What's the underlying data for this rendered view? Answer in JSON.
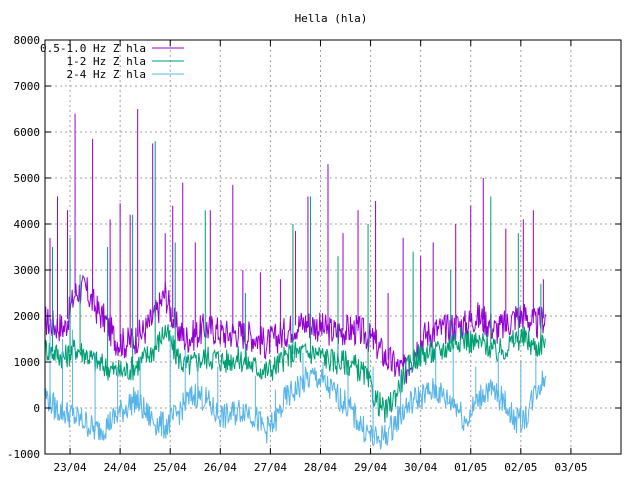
{
  "chart_data": {
    "type": "line",
    "title": "Hella (hla)",
    "xlabel": "",
    "ylabel": "",
    "ylim": [
      -1000,
      8000
    ],
    "yticks": [
      -1000,
      0,
      1000,
      2000,
      3000,
      4000,
      5000,
      6000,
      7000,
      8000
    ],
    "xlim": [
      0,
      11.5
    ],
    "xticks": [
      {
        "label": "23/04",
        "pos": 0.5
      },
      {
        "label": "24/04",
        "pos": 1.5
      },
      {
        "label": "25/04",
        "pos": 2.5
      },
      {
        "label": "26/04",
        "pos": 3.5
      },
      {
        "label": "27/04",
        "pos": 4.5
      },
      {
        "label": "28/04",
        "pos": 5.5
      },
      {
        "label": "29/04",
        "pos": 6.5
      },
      {
        "label": "30/04",
        "pos": 7.5
      },
      {
        "label": "01/05",
        "pos": 8.5
      },
      {
        "label": "02/05",
        "pos": 9.5
      },
      {
        "label": "03/05",
        "pos": 10.5
      }
    ],
    "grid": true,
    "legend_position": "top-left",
    "series": [
      {
        "name": "0.5-1.0 Hz Z hla",
        "color": "#9400d3",
        "x": [
          0.0,
          0.2,
          0.4,
          0.6,
          0.8,
          1.0,
          1.2,
          1.4,
          1.6,
          1.8,
          2.0,
          2.2,
          2.4,
          2.6,
          2.8,
          3.0,
          3.2,
          3.4,
          3.6,
          3.8,
          4.0,
          4.2,
          4.4,
          4.6,
          4.8,
          5.0,
          5.2,
          5.4,
          5.6,
          5.8,
          6.0,
          6.2,
          6.4,
          6.6,
          6.8,
          7.0,
          7.2,
          7.4,
          7.6,
          7.8,
          8.0,
          8.2,
          8.4,
          8.6,
          8.8,
          9.0,
          9.2,
          9.4,
          9.6,
          9.8,
          10.0
        ],
        "y": [
          1900,
          1800,
          1750,
          2500,
          2600,
          2200,
          1900,
          1500,
          1400,
          1500,
          1700,
          2000,
          2500,
          1800,
          1500,
          1600,
          1750,
          1700,
          1600,
          1650,
          1600,
          1550,
          1400,
          1500,
          1650,
          1800,
          1850,
          1800,
          1700,
          1650,
          1700,
          1700,
          1600,
          1400,
          1100,
          900,
          800,
          1300,
          1600,
          1700,
          1700,
          1800,
          1800,
          2000,
          1900,
          1700,
          1800,
          2000,
          2000,
          1800,
          2000
        ],
        "spikes": [
          [
            0.1,
            3700
          ],
          [
            0.25,
            4600
          ],
          [
            0.45,
            4300
          ],
          [
            0.6,
            6400
          ],
          [
            0.95,
            5850
          ],
          [
            1.3,
            4100
          ],
          [
            1.5,
            4450
          ],
          [
            1.7,
            4200
          ],
          [
            1.85,
            6500
          ],
          [
            2.15,
            5750
          ],
          [
            2.4,
            3800
          ],
          [
            2.55,
            4400
          ],
          [
            2.75,
            4900
          ],
          [
            3.0,
            3600
          ],
          [
            3.3,
            4300
          ],
          [
            3.75,
            4850
          ],
          [
            3.95,
            3000
          ],
          [
            4.3,
            2950
          ],
          [
            4.7,
            2800
          ],
          [
            5.0,
            3850
          ],
          [
            5.25,
            4600
          ],
          [
            5.65,
            5300
          ],
          [
            5.95,
            3800
          ],
          [
            6.25,
            4300
          ],
          [
            6.6,
            4500
          ],
          [
            6.85,
            2500
          ],
          [
            7.15,
            3700
          ],
          [
            7.5,
            3300
          ],
          [
            7.75,
            3600
          ],
          [
            8.2,
            4000
          ],
          [
            8.5,
            4400
          ],
          [
            8.75,
            5000
          ],
          [
            9.2,
            3900
          ],
          [
            9.55,
            4100
          ],
          [
            9.75,
            4300
          ],
          [
            9.95,
            2800
          ]
        ]
      },
      {
        "name": "1-2 Hz Z hla",
        "color": "#009e73",
        "x": [
          0.0,
          0.2,
          0.4,
          0.6,
          0.8,
          1.0,
          1.2,
          1.4,
          1.6,
          1.8,
          2.0,
          2.2,
          2.4,
          2.6,
          2.8,
          3.0,
          3.2,
          3.4,
          3.6,
          3.8,
          4.0,
          4.2,
          4.4,
          4.6,
          4.8,
          5.0,
          5.2,
          5.4,
          5.6,
          5.8,
          6.0,
          6.2,
          6.4,
          6.6,
          6.8,
          7.0,
          7.2,
          7.4,
          7.6,
          7.8,
          8.0,
          8.2,
          8.4,
          8.6,
          8.8,
          9.0,
          9.2,
          9.4,
          9.6,
          9.8,
          10.0
        ],
        "y": [
          1300,
          1200,
          1100,
          1300,
          1200,
          1000,
          900,
          800,
          800,
          900,
          1100,
          1300,
          1700,
          1200,
          900,
          1000,
          1100,
          1100,
          1000,
          1100,
          1000,
          900,
          800,
          900,
          1100,
          1200,
          1200,
          1200,
          1100,
          1000,
          1000,
          900,
          700,
          200,
          -100,
          300,
          800,
          1100,
          1200,
          1200,
          1300,
          1500,
          1500,
          1400,
          1400,
          1200,
          1300,
          1500,
          1500,
          1300,
          1500
        ],
        "spikes": [
          [
            0.15,
            3500
          ],
          [
            0.5,
            3700
          ],
          [
            0.7,
            2900
          ],
          [
            1.25,
            3500
          ],
          [
            1.75,
            4200
          ],
          [
            2.2,
            5800
          ],
          [
            2.6,
            3600
          ],
          [
            3.2,
            4300
          ],
          [
            4.0,
            2500
          ],
          [
            4.95,
            4000
          ],
          [
            5.3,
            4600
          ],
          [
            5.85,
            3300
          ],
          [
            6.45,
            4000
          ],
          [
            7.35,
            3400
          ],
          [
            8.1,
            3000
          ],
          [
            8.9,
            4600
          ],
          [
            9.45,
            3800
          ],
          [
            9.9,
            2700
          ]
        ]
      },
      {
        "name": "2-4 Hz Z hla",
        "color": "#56b4e9",
        "x": [
          0.0,
          0.2,
          0.4,
          0.6,
          0.8,
          1.0,
          1.2,
          1.4,
          1.6,
          1.8,
          2.0,
          2.2,
          2.4,
          2.6,
          2.8,
          3.0,
          3.2,
          3.4,
          3.6,
          3.8,
          4.0,
          4.2,
          4.4,
          4.6,
          4.8,
          5.0,
          5.2,
          5.4,
          5.6,
          5.8,
          6.0,
          6.2,
          6.4,
          6.6,
          6.8,
          7.0,
          7.2,
          7.4,
          7.6,
          7.8,
          8.0,
          8.2,
          8.4,
          8.6,
          8.8,
          9.0,
          9.2,
          9.4,
          9.6,
          9.8,
          10.0
        ],
        "y": [
          300,
          0,
          -100,
          -200,
          -300,
          -500,
          -400,
          -200,
          0,
          200,
          -100,
          -300,
          -400,
          -200,
          100,
          300,
          200,
          -100,
          -200,
          -100,
          0,
          -200,
          -500,
          -300,
          200,
          400,
          600,
          700,
          500,
          300,
          100,
          -200,
          -500,
          -700,
          -600,
          -300,
          0,
          200,
          300,
          400,
          200,
          100,
          -300,
          100,
          400,
          300,
          100,
          -300,
          -200,
          400,
          700
        ],
        "spikes": [
          [
            0.1,
            1900
          ],
          [
            0.35,
            1500
          ],
          [
            0.55,
            1700
          ],
          [
            1.0,
            1200
          ],
          [
            1.45,
            900
          ],
          [
            1.9,
            1100
          ],
          [
            2.5,
            1600
          ],
          [
            2.8,
            1300
          ],
          [
            3.05,
            1000
          ],
          [
            3.45,
            900
          ],
          [
            4.2,
            700
          ],
          [
            4.6,
            400
          ],
          [
            5.15,
            1200
          ],
          [
            5.55,
            1000
          ],
          [
            6.05,
            800
          ],
          [
            6.55,
            900
          ],
          [
            7.1,
            700
          ],
          [
            7.8,
            1300
          ],
          [
            8.15,
            1300
          ],
          [
            8.6,
            900
          ],
          [
            9.05,
            1200
          ],
          [
            9.5,
            1000
          ],
          [
            9.8,
            1100
          ]
        ]
      }
    ]
  }
}
